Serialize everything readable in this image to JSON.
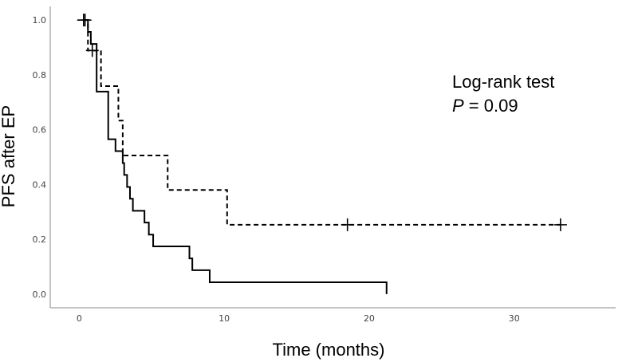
{
  "chart_data": {
    "type": "line",
    "subtype": "kaplan-meier",
    "title": "",
    "xlabel": "Time (months)",
    "ylabel": "PFS after EP",
    "xlim": [
      -2,
      37
    ],
    "ylim": [
      -0.05,
      1.05
    ],
    "x_ticks": [
      0,
      10,
      20,
      30
    ],
    "y_ticks": [
      "0.0",
      "0.2",
      "0.4",
      "0.6",
      "0.8",
      "1.0"
    ],
    "grid": false,
    "annotation": {
      "line1": "Log-rank test",
      "p_label": "P",
      "p_rest": " = 0.09"
    },
    "series": [
      {
        "name": "solid",
        "style": "solid",
        "color": "#000000",
        "steps": [
          [
            0.3,
            1.0
          ],
          [
            0.6,
            0.957
          ],
          [
            0.8,
            0.913
          ],
          [
            1.2,
            0.739
          ],
          [
            2.0,
            0.565
          ],
          [
            2.5,
            0.522
          ],
          [
            3.0,
            0.478
          ],
          [
            3.1,
            0.435
          ],
          [
            3.3,
            0.391
          ],
          [
            3.5,
            0.348
          ],
          [
            3.7,
            0.304
          ],
          [
            4.5,
            0.261
          ],
          [
            4.8,
            0.217
          ],
          [
            5.1,
            0.174
          ],
          [
            7.6,
            0.13
          ],
          [
            7.8,
            0.087
          ],
          [
            9.0,
            0.043
          ],
          [
            21.2,
            0.0
          ]
        ],
        "censored": [
          [
            0.4,
            1.0
          ]
        ]
      },
      {
        "name": "dashed",
        "style": "dashed",
        "color": "#000000",
        "steps": [
          [
            0.3,
            1.0
          ],
          [
            0.6,
            0.889
          ],
          [
            1.5,
            0.759
          ],
          [
            2.7,
            0.633
          ],
          [
            3.0,
            0.506
          ],
          [
            6.1,
            0.38
          ],
          [
            10.2,
            0.253
          ],
          [
            33.2,
            0.253
          ]
        ],
        "censored": [
          [
            0.3,
            1.0
          ],
          [
            0.9,
            0.889
          ],
          [
            18.5,
            0.253
          ],
          [
            33.2,
            0.253
          ]
        ]
      }
    ]
  }
}
